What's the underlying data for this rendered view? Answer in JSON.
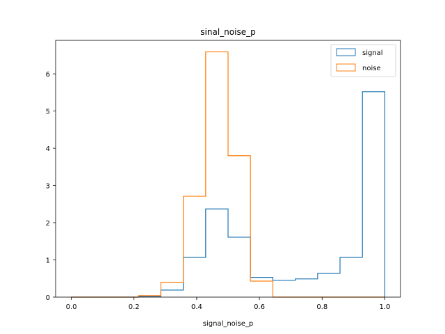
{
  "chart_data": {
    "type": "histogram",
    "title": "sinal_noise_p",
    "xlabel": "signal_noise_p",
    "ylabel": "",
    "xlim": [
      -0.05,
      1.05
    ],
    "ylim": [
      0,
      6.9
    ],
    "xticks": [
      0.0,
      0.2,
      0.4,
      0.6,
      0.8,
      1.0
    ],
    "xtick_labels": [
      "0.0",
      "0.2",
      "0.4",
      "0.6",
      "0.8",
      "1.0"
    ],
    "yticks": [
      0,
      1,
      2,
      3,
      4,
      5,
      6
    ],
    "ytick_labels": [
      "0",
      "1",
      "2",
      "3",
      "4",
      "5",
      "6"
    ],
    "legend_position": "top-right",
    "bin_edges": [
      0.0,
      0.0714,
      0.1429,
      0.2143,
      0.2857,
      0.3571,
      0.4286,
      0.5,
      0.5714,
      0.6429,
      0.7143,
      0.7857,
      0.8571,
      0.9286,
      1.0
    ],
    "series": [
      {
        "name": "signal",
        "color": "#1f77b4",
        "values": [
          0,
          0,
          0,
          0.02,
          0.19,
          1.07,
          2.37,
          1.61,
          0.53,
          0.45,
          0.49,
          0.64,
          1.07,
          5.52
        ]
      },
      {
        "name": "noise",
        "color": "#ff7f0e",
        "values": [
          0,
          0,
          0,
          0.04,
          0.4,
          2.71,
          6.59,
          3.8,
          0.43,
          0,
          0,
          0,
          0,
          0
        ]
      }
    ]
  }
}
